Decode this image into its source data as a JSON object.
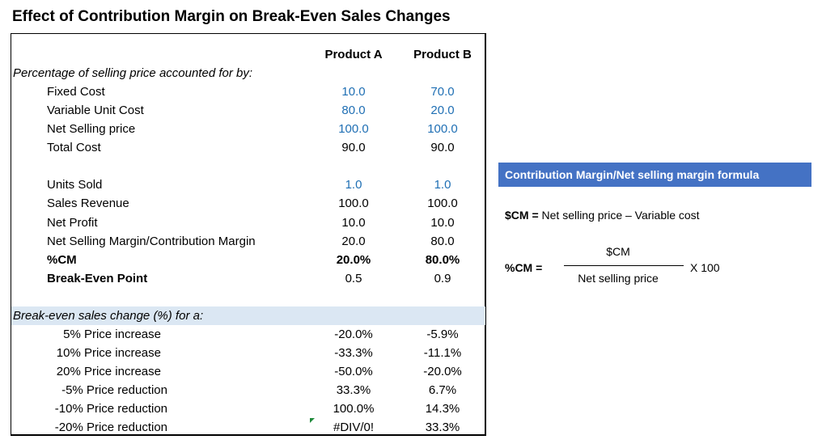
{
  "title": "Effect of Contribution Margin on Break-Even Sales Changes",
  "table": {
    "col_a": "Product A",
    "col_b": "Product B",
    "section1": "Percentage of selling price accounted for by:",
    "rows1": [
      {
        "label": "Fixed Cost",
        "a": "10.0",
        "b": "70.0"
      },
      {
        "label": "Variable Unit Cost",
        "a": "80.0",
        "b": "20.0"
      },
      {
        "label": "Net Selling price",
        "a": "100.0",
        "b": "100.0"
      },
      {
        "label": "Total Cost",
        "a": "90.0",
        "b": "90.0"
      }
    ],
    "rows2": [
      {
        "label": "Units Sold",
        "a": "1.0",
        "b": "1.0"
      },
      {
        "label": "Sales Revenue",
        "a": "100.0",
        "b": "100.0"
      },
      {
        "label": "Net Profit",
        "a": "10.0",
        "b": "10.0"
      },
      {
        "label": "Net Selling Margin/Contribution Margin",
        "a": "20.0",
        "b": "80.0"
      },
      {
        "label": "%CM",
        "a": "20.0%",
        "b": "80.0%"
      },
      {
        "label": "Break-Even Point",
        "a": "0.5",
        "b": "0.9"
      }
    ],
    "section2": "Break-even sales change (%) for a:",
    "rows3": [
      {
        "label": "5% Price increase",
        "a": "-20.0%",
        "b": "-5.9%"
      },
      {
        "label": "10% Price increase",
        "a": "-33.3%",
        "b": "-11.1%"
      },
      {
        "label": "20% Price increase",
        "a": "-50.0%",
        "b": "-20.0%"
      },
      {
        "label": "-5% Price reduction",
        "a": "33.3%",
        "b": "6.7%"
      },
      {
        "label": "-10% Price reduction",
        "a": "100.0%",
        "b": "14.3%"
      },
      {
        "label": "-20% Price reduction",
        "a": "#DIV/0!",
        "b": "33.3%"
      }
    ]
  },
  "formula": {
    "heading": "Contribution Margin/Net selling margin formula",
    "line1_term": "$CM =",
    "line1_rest": " Net selling price – Variable cost",
    "pct_label": "%CM =",
    "numerator": "$CM",
    "denominator": "Net selling price",
    "multiplier": "X 100"
  },
  "colors": {
    "input_blue": "#1f6fb4",
    "header_fill": "#4472c4",
    "section_shade": "#dbe7f3",
    "error_flag": "#1e8a3a"
  }
}
